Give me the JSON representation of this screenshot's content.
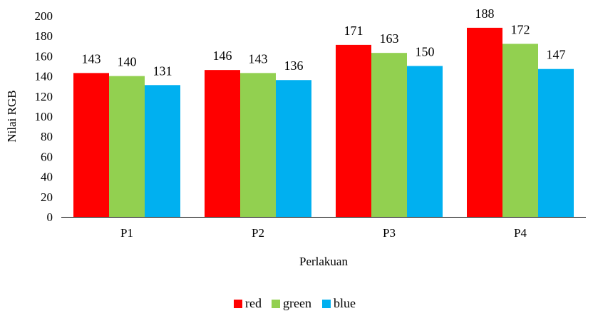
{
  "chart_data": {
    "type": "bar",
    "title": "",
    "xlabel": "Perlakuan",
    "ylabel": "Nilai RGB",
    "categories": [
      "P1",
      "P2",
      "P3",
      "P4"
    ],
    "series": [
      {
        "name": "red",
        "color": "#ff0000",
        "values": [
          143,
          146,
          171,
          188
        ]
      },
      {
        "name": "green",
        "color": "#92d050",
        "values": [
          140,
          143,
          163,
          172
        ]
      },
      {
        "name": "blue",
        "color": "#00b0f0",
        "values": [
          131,
          136,
          150,
          147
        ]
      }
    ],
    "ylim": [
      0,
      200
    ],
    "yticks": [
      0,
      20,
      40,
      60,
      80,
      100,
      120,
      140,
      160,
      180,
      200
    ],
    "grid": false,
    "legend_position": "bottom"
  }
}
